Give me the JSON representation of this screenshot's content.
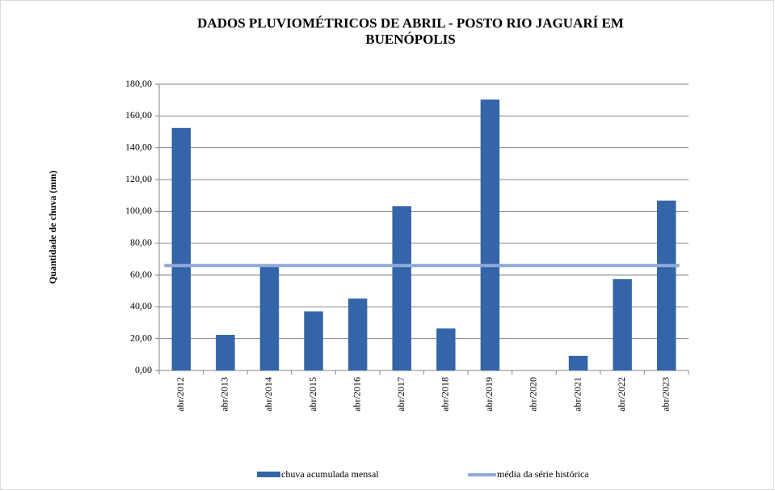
{
  "chart_data": {
    "type": "bar",
    "title": "DADOS PLUVIOMÉTRICOS  DE ABRIL - POSTO RIO JAGUARÍ EM BUENÓPOLIS",
    "y_label": "Quantidade  de chuva (mm)",
    "categories": [
      "abr/2012",
      "abr/2013",
      "abr/2014",
      "abr/2015",
      "abr/2016",
      "abr/2017",
      "abr/2018",
      "abr/2019",
      "abr/2020",
      "abr/2021",
      "abr/2022",
      "abr/2023"
    ],
    "series": [
      {
        "name": "chuva acumulada mensal",
        "type": "bar",
        "color": "#3465a8",
        "values": [
          152.5,
          22.4,
          65.6,
          37.1,
          45.2,
          103.2,
          26.4,
          170.3,
          0,
          9.2,
          57.4,
          106.8
        ]
      },
      {
        "name": "média da série histórica",
        "type": "line",
        "color": "#8fa9d8",
        "values": [
          66,
          66,
          66,
          66,
          66,
          66,
          66,
          66,
          66,
          66,
          66,
          66
        ]
      }
    ],
    "ylim": [
      0,
      180
    ],
    "yticks": [
      {
        "value": 0,
        "label": "0,00"
      },
      {
        "value": 20,
        "label": "20,00"
      },
      {
        "value": 40,
        "label": "40,00"
      },
      {
        "value": 60,
        "label": "60,00"
      },
      {
        "value": 80,
        "label": "80,00"
      },
      {
        "value": 100,
        "label": "100,00"
      },
      {
        "value": 120,
        "label": "120,00"
      },
      {
        "value": 140,
        "label": "140,00"
      },
      {
        "value": 160,
        "label": "160,00"
      },
      {
        "value": 180,
        "label": "180,00"
      }
    ],
    "grid": true,
    "legend": "bottom"
  }
}
